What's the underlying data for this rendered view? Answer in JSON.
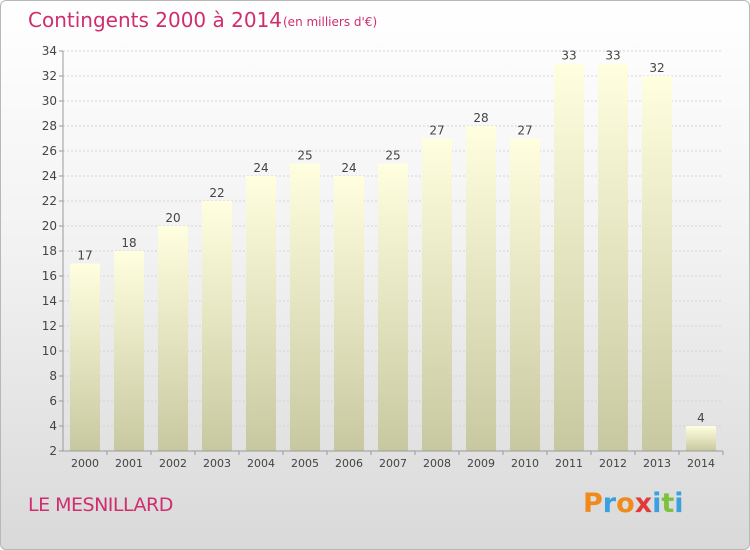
{
  "chart_data": {
    "type": "bar",
    "title": "Contingents 2000 à 2014",
    "subtitle": "(en milliers d'€)",
    "categories": [
      "2000",
      "2001",
      "2002",
      "2003",
      "2004",
      "2005",
      "2006",
      "2007",
      "2008",
      "2009",
      "2010",
      "2011",
      "2012",
      "2013",
      "2014"
    ],
    "values": [
      17,
      18,
      20,
      22,
      24,
      25,
      24,
      25,
      27,
      28,
      27,
      33,
      33,
      32,
      4
    ],
    "data_labels": [
      "17",
      "18",
      "20",
      "22",
      "24",
      "25",
      "24",
      "25",
      "27",
      "28",
      "27",
      "33",
      "33",
      "32",
      "4"
    ],
    "ylim": [
      2,
      34
    ],
    "yticks": [
      2,
      4,
      6,
      8,
      10,
      12,
      14,
      16,
      18,
      20,
      22,
      24,
      26,
      28,
      30,
      32,
      34
    ],
    "ytick_labels": [
      "2",
      "4",
      "6",
      "8",
      "10",
      "12",
      "14",
      "16",
      "18",
      "20",
      "22",
      "24",
      "26",
      "28",
      "30",
      "32",
      "34"
    ],
    "grid": true,
    "xlabel": "",
    "ylabel": "",
    "bar_color_top": "#ffffe0",
    "bar_color_bottom": "#c8c8a0"
  },
  "place_name": "LE MESNILLARD",
  "logo": {
    "letters": [
      "P",
      "r",
      "o",
      "x",
      "i",
      "t",
      "i"
    ],
    "colors": [
      "#f08a1c",
      "#3aa0e0",
      "#f08a1c",
      "#e03a3a",
      "#3aa0e0",
      "#7cc23c",
      "#3aa0e0"
    ],
    "icon": "proxiti-logo"
  },
  "colors": {
    "title": "#d02d6f",
    "axis_text": "#444444"
  }
}
